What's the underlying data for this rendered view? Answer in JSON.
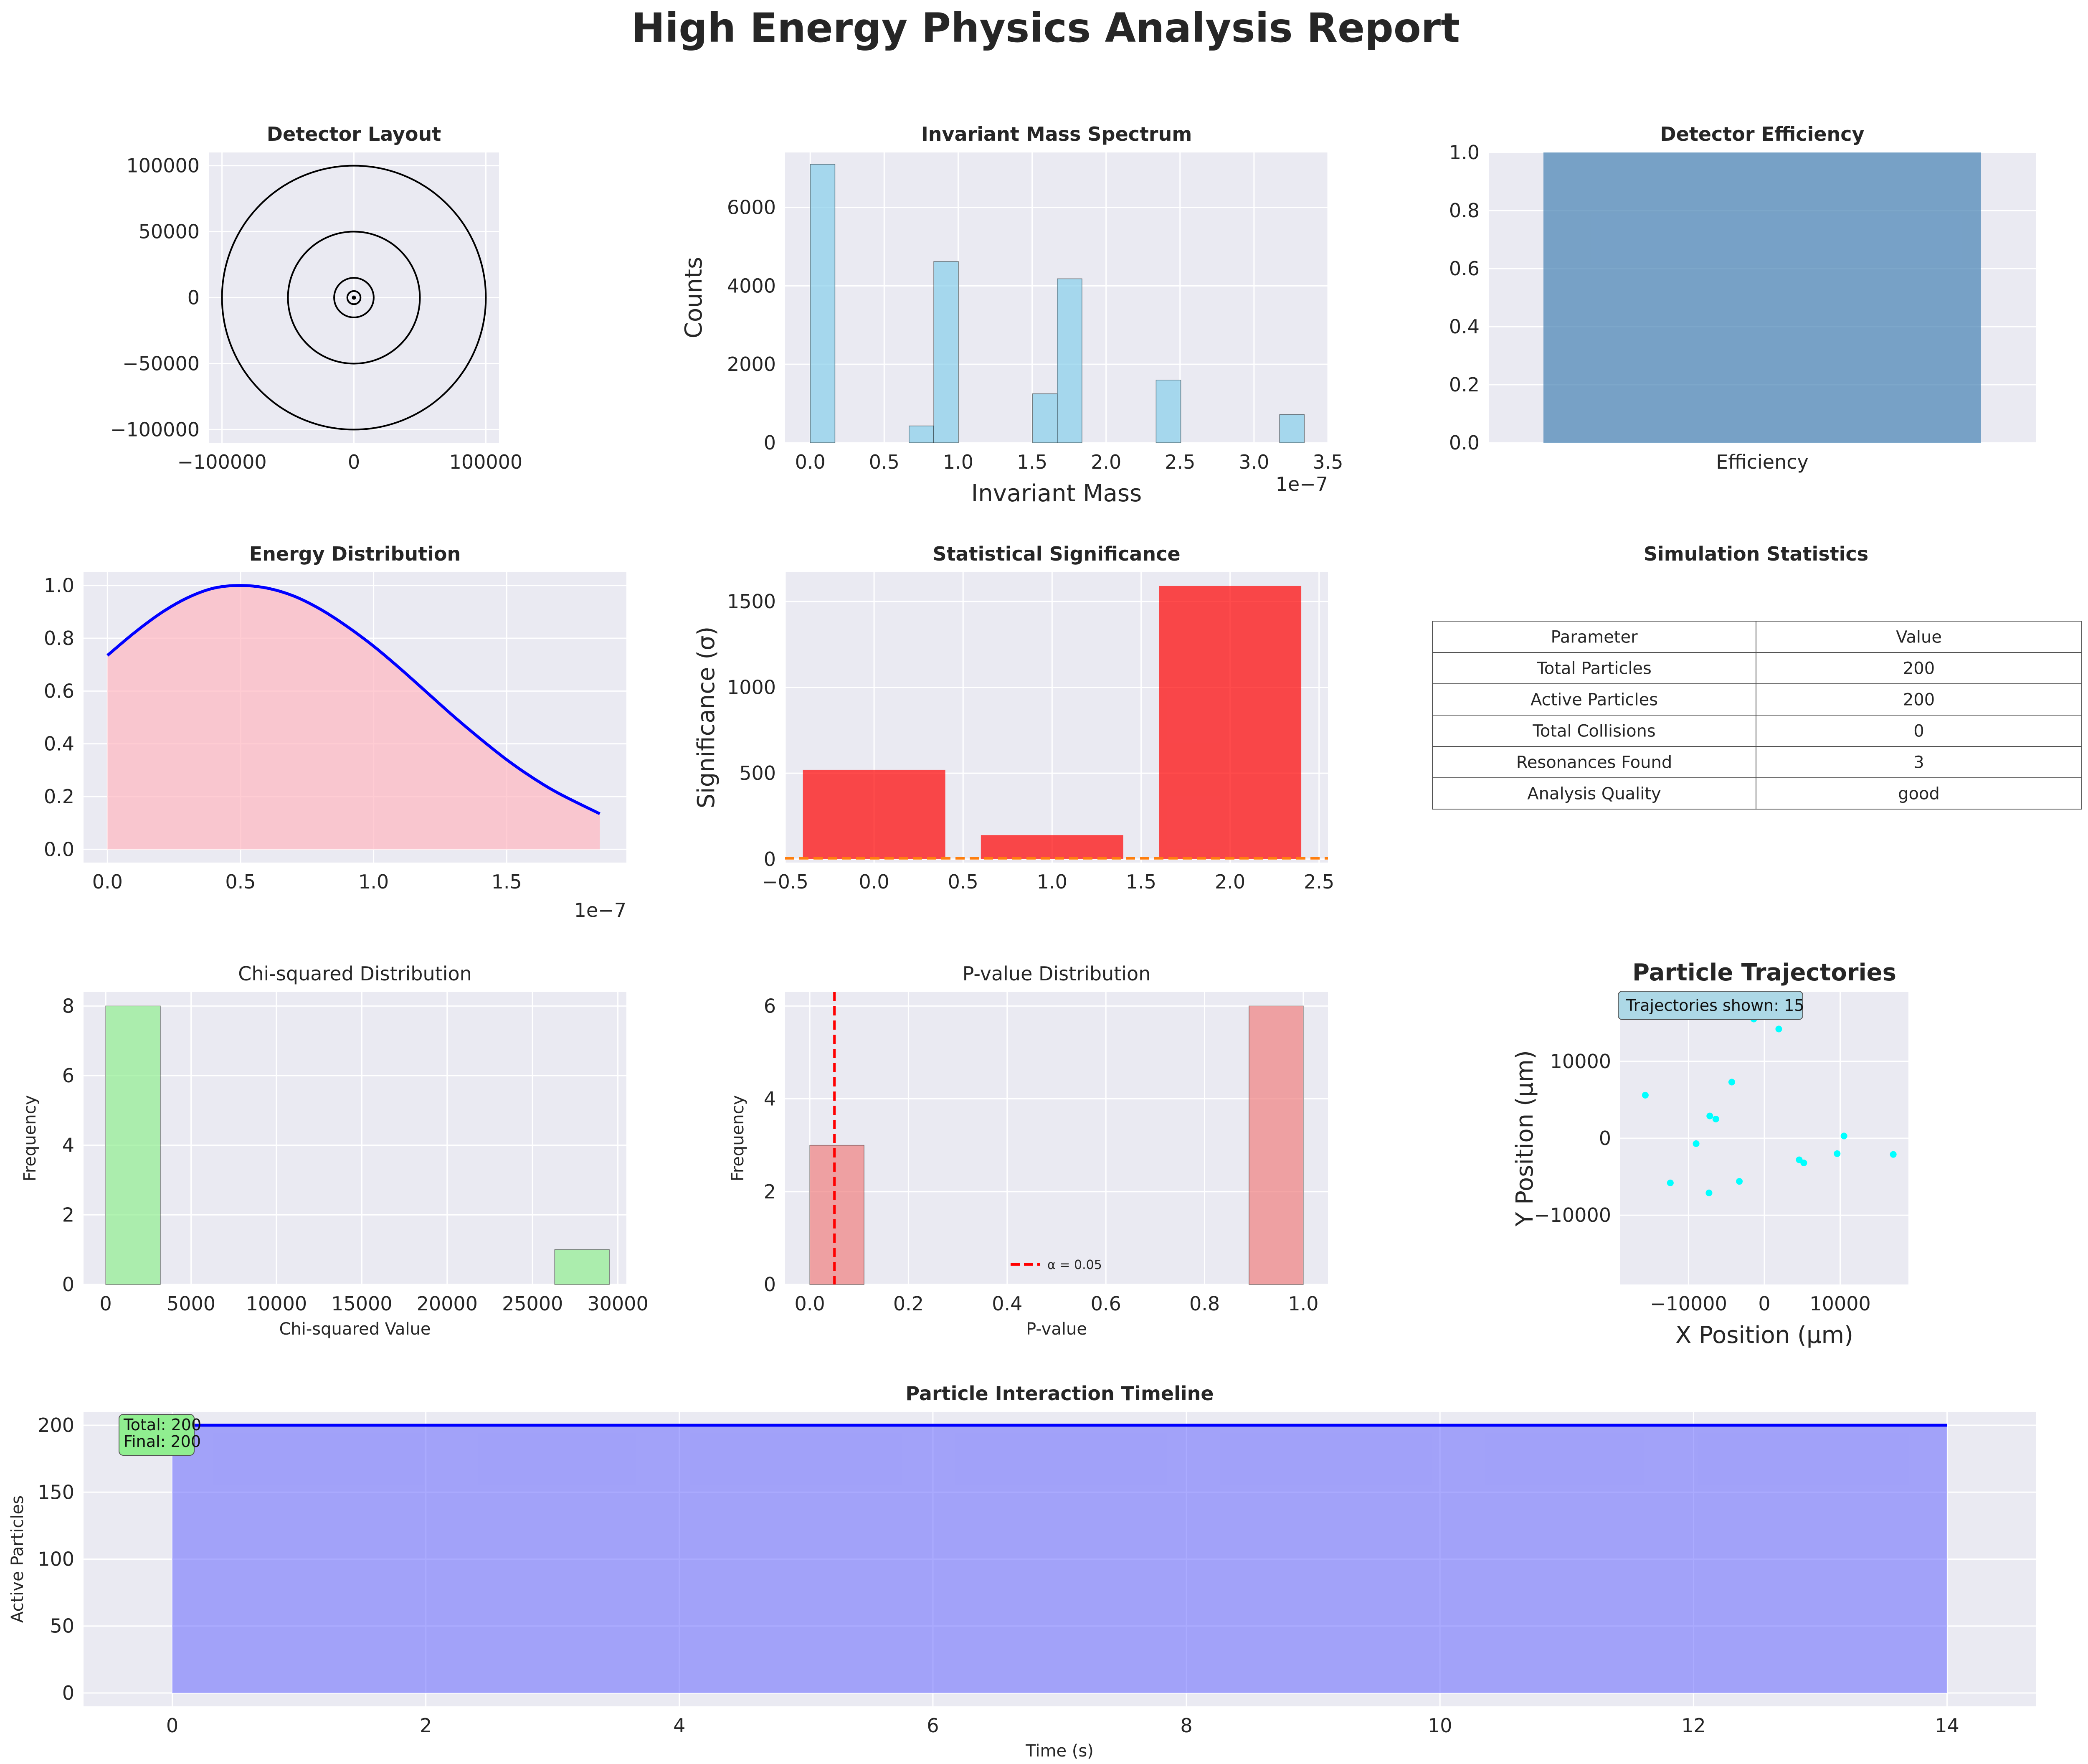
{
  "title": "High Energy Physics Analysis Report",
  "colors": {
    "axes_bg": "#eaeaf2",
    "grid": "#ffffff",
    "hist_blue": "#87ceeb",
    "eff_bar": "#4682b4",
    "energy_line": "#0000ff",
    "energy_fill": "#ffb6c1",
    "sig_bar": "#ff0000",
    "sig_threshold": "#ff7f0e",
    "chi_bar": "#90ee90",
    "pval_bar": "#f08080",
    "pval_line": "#ff0000",
    "traj_point": "#00ffff",
    "timeline_line": "#0000ff",
    "timeline_fill": "#6666ff"
  },
  "chart_data": [
    {
      "id": "detector",
      "type": "scatter",
      "title": "Detector Layout",
      "xlim": [
        -110000,
        110000
      ],
      "ylim": [
        -110000,
        110000
      ],
      "xticks": [
        -100000,
        0,
        100000
      ],
      "yticks": [
        -100000,
        -50000,
        0,
        50000,
        100000
      ],
      "xtick_labels": [
        "−100000",
        "0",
        "100000"
      ],
      "ytick_labels": [
        "−100000",
        "−50000",
        "0",
        "50000",
        "100000"
      ],
      "circle_radii": [
        100000,
        50000,
        15000,
        5000
      ],
      "grid": true
    },
    {
      "id": "mass",
      "type": "bar",
      "title": "Invariant Mass Spectrum",
      "xlabel": "Invariant Mass",
      "ylabel": "Counts",
      "offset_text": "1e−7",
      "xlim": [
        -0.17,
        3.5
      ],
      "ylim": [
        0,
        7400
      ],
      "xticks": [
        0,
        0.5,
        1,
        1.5,
        2,
        2.5,
        3,
        3.5
      ],
      "xtick_labels": [
        "0.0",
        "0.5",
        "1.0",
        "1.5",
        "2.0",
        "2.5",
        "3.0",
        "3.5"
      ],
      "yticks": [
        0,
        2000,
        4000,
        6000
      ],
      "ytick_labels": [
        "0",
        "2000",
        "4000",
        "6000"
      ],
      "bin_width": 0.167,
      "bins": [
        {
          "x": 0.0,
          "count": 7100
        },
        {
          "x": 0.668,
          "count": 430
        },
        {
          "x": 0.835,
          "count": 4620
        },
        {
          "x": 1.503,
          "count": 1250
        },
        {
          "x": 1.67,
          "count": 4180
        },
        {
          "x": 2.338,
          "count": 1600
        },
        {
          "x": 3.173,
          "count": 720
        }
      ],
      "grid": true
    },
    {
      "id": "efficiency",
      "type": "bar",
      "title": "Detector Efficiency",
      "categories": [
        "Efficiency"
      ],
      "values": [
        1.0
      ],
      "xlim": [
        -0.5,
        0.5
      ],
      "ylim": [
        0,
        1.0
      ],
      "yticks": [
        0,
        0.2,
        0.4,
        0.6,
        0.8,
        1.0
      ],
      "ytick_labels": [
        "0.0",
        "0.2",
        "0.4",
        "0.6",
        "0.8",
        "1.0"
      ],
      "grid": true
    },
    {
      "id": "energy",
      "type": "area",
      "title": "Energy Distribution",
      "offset_text": "1e−7",
      "xlim": [
        -0.09,
        1.95
      ],
      "ylim": [
        -0.05,
        1.05
      ],
      "xticks": [
        0,
        0.5,
        1,
        1.5
      ],
      "xtick_labels": [
        "0.0",
        "0.5",
        "1.0",
        "1.5"
      ],
      "yticks": [
        0,
        0.2,
        0.4,
        0.6,
        0.8,
        1.0
      ],
      "ytick_labels": [
        "0.0",
        "0.2",
        "0.4",
        "0.6",
        "0.8",
        "1.0"
      ],
      "x": [
        0,
        0.1,
        0.2,
        0.3,
        0.4,
        0.5,
        0.6,
        0.7,
        0.8,
        0.9,
        1.0,
        1.1,
        1.2,
        1.3,
        1.4,
        1.5,
        1.6,
        1.7,
        1.85
      ],
      "y": [
        0.735,
        0.82,
        0.895,
        0.953,
        0.99,
        1.0,
        0.99,
        0.96,
        0.91,
        0.845,
        0.77,
        0.685,
        0.595,
        0.505,
        0.42,
        0.34,
        0.27,
        0.21,
        0.135
      ],
      "grid": true
    },
    {
      "id": "significance",
      "type": "bar",
      "title": "Statistical Significance",
      "ylabel": "Significance (σ)",
      "xlim": [
        -0.5,
        2.55
      ],
      "ylim": [
        -20,
        1670
      ],
      "xticks": [
        -0.5,
        0,
        0.5,
        1,
        1.5,
        2,
        2.5
      ],
      "xtick_labels": [
        "−0.5",
        "0.0",
        "0.5",
        "1.0",
        "1.5",
        "2.0",
        "2.5"
      ],
      "yticks": [
        0,
        500,
        1000,
        1500
      ],
      "ytick_labels": [
        "0",
        "500",
        "1000",
        "1500"
      ],
      "bars": [
        {
          "x": 0,
          "width": 0.8,
          "value": 520
        },
        {
          "x": 1,
          "width": 0.8,
          "value": 140
        },
        {
          "x": 2,
          "width": 0.8,
          "value": 1590
        }
      ],
      "threshold": 5,
      "grid": true
    },
    {
      "id": "chi2",
      "type": "bar",
      "title": "Chi-squared Distribution",
      "xlabel": "Chi-squared Value",
      "ylabel": "Frequency",
      "xlim": [
        -1300,
        30500
      ],
      "ylim": [
        0,
        8.4
      ],
      "xticks": [
        0,
        5000,
        10000,
        15000,
        20000,
        25000,
        30000
      ],
      "xtick_labels": [
        "0",
        "5000",
        "10000",
        "15000",
        "20000",
        "25000",
        "30000"
      ],
      "yticks": [
        0,
        2,
        4,
        6,
        8
      ],
      "ytick_labels": [
        "0",
        "2",
        "4",
        "6",
        "8"
      ],
      "bins": [
        {
          "x0": 0,
          "x1": 3200,
          "count": 8
        },
        {
          "x0": 26300,
          "x1": 29500,
          "count": 1
        }
      ],
      "grid": true
    },
    {
      "id": "pvalue",
      "type": "bar",
      "title": "P-value Distribution",
      "xlabel": "P-value",
      "ylabel": "Frequency",
      "xlim": [
        -0.05,
        1.05
      ],
      "ylim": [
        0,
        6.3
      ],
      "xticks": [
        0,
        0.2,
        0.4,
        0.6,
        0.8,
        1.0
      ],
      "xtick_labels": [
        "0.0",
        "0.2",
        "0.4",
        "0.6",
        "0.8",
        "1.0"
      ],
      "yticks": [
        0,
        2,
        4,
        6
      ],
      "ytick_labels": [
        "0",
        "2",
        "4",
        "6"
      ],
      "bins": [
        {
          "x0": 0,
          "x1": 0.11,
          "count": 3
        },
        {
          "x0": 0.89,
          "x1": 1.0,
          "count": 6
        }
      ],
      "alpha_line": 0.05,
      "legend": "α = 0.05",
      "grid": true
    },
    {
      "id": "trajectories",
      "type": "scatter",
      "title": "Particle Trajectories",
      "xlabel": "X Position (μm)",
      "ylabel": "Y Position (μm)",
      "annotation": "Trajectories shown: 15",
      "xlim": [
        -19000,
        19000
      ],
      "ylim": [
        -19000,
        19000
      ],
      "xticks": [
        -10000,
        0,
        10000
      ],
      "xtick_labels": [
        "−10000",
        "0",
        "10000"
      ],
      "yticks": [
        -10000,
        0,
        10000
      ],
      "ytick_labels": [
        "−10000",
        "0",
        "10000"
      ],
      "x": [
        -1400,
        1900,
        -15700,
        -4300,
        -7200,
        -6400,
        -9000,
        -12400,
        -3300,
        -7300,
        4600,
        5200,
        9600,
        10500,
        17000
      ],
      "y": [
        15500,
        14200,
        5600,
        7300,
        2900,
        2500,
        -700,
        -5800,
        -5600,
        -7100,
        -2800,
        -3200,
        -2000,
        300,
        -2100
      ],
      "grid": true
    },
    {
      "id": "timeline",
      "type": "area",
      "title": "Particle Interaction Timeline",
      "xlabel": "Time (s)",
      "ylabel": "Active Particles",
      "annotation": [
        "Total: 200",
        "Final: 200"
      ],
      "xlim": [
        -0.7,
        14.7
      ],
      "ylim": [
        -10,
        210
      ],
      "xticks": [
        0,
        2,
        4,
        6,
        8,
        10,
        12,
        14
      ],
      "xtick_labels": [
        "0",
        "2",
        "4",
        "6",
        "8",
        "10",
        "12",
        "14"
      ],
      "yticks": [
        0,
        50,
        100,
        150,
        200
      ],
      "ytick_labels": [
        "0",
        "50",
        "100",
        "150",
        "200"
      ],
      "x": [
        0,
        14
      ],
      "y": [
        200,
        200
      ],
      "grid": true
    }
  ],
  "stats_table": {
    "title": "Simulation Statistics",
    "header": [
      "Parameter",
      "Value"
    ],
    "rows": [
      [
        "Total Particles",
        "200"
      ],
      [
        "Active Particles",
        "200"
      ],
      [
        "Total Collisions",
        "0"
      ],
      [
        "Resonances Found",
        "3"
      ],
      [
        "Analysis Quality",
        "good"
      ]
    ]
  }
}
